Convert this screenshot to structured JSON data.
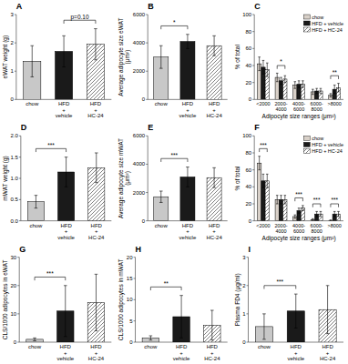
{
  "chart_data": [
    {
      "type": "bar",
      "title": "A",
      "ylabel": "eWAT weight (g)",
      "categories": [
        "chow",
        "HFD\n+\nvehicle",
        "HFD\n+\nHC-24"
      ],
      "values": [
        1.35,
        1.7,
        1.95
      ],
      "errors": [
        0.55,
        0.55,
        0.55
      ],
      "colors": [
        "#c8c8c8",
        "#1a1a1a",
        "white"
      ],
      "ylim": [
        0,
        3
      ],
      "yticks": [
        0,
        1,
        2,
        3
      ],
      "annotations": [
        {
          "text": "p=0.10",
          "between": [
            "HFD\n+\nvehicle",
            "HFD\n+\nHC-24"
          ]
        }
      ]
    },
    {
      "type": "bar",
      "title": "B",
      "ylabel": "Average adipocyte size eWAT (μm²)",
      "categories": [
        "chow",
        "HFD\n+\nvehicle",
        "HFD\n+\nHC-24"
      ],
      "values": [
        3000,
        4100,
        3800
      ],
      "errors": [
        800,
        500,
        700
      ],
      "colors": [
        "#c8c8c8",
        "#1a1a1a",
        "white"
      ],
      "ylim": [
        0,
        6000
      ],
      "yticks": [
        0,
        2000,
        4000,
        6000
      ],
      "annotations": [
        {
          "text": "*",
          "between": [
            "chow",
            "HFD\n+\nvehicle"
          ]
        }
      ]
    },
    {
      "type": "bar",
      "title": "C",
      "ylabel": "% of total",
      "xlabel": "Adipocyte size ranges (μm²)",
      "categories": [
        "<2000",
        "2000-\n4000",
        "4000-\n6000",
        "6000-\n8000",
        ">8000"
      ],
      "series": [
        {
          "name": "chow",
          "color": "#d8d0c8",
          "values": [
            42,
            26,
            17,
            9,
            5
          ],
          "errors": [
            8,
            5,
            4,
            3,
            2
          ]
        },
        {
          "name": "HFD + vehicle",
          "color": "#1a1a1a",
          "values": [
            38,
            22,
            18,
            10,
            12
          ],
          "errors": [
            8,
            4,
            4,
            3,
            5
          ]
        },
        {
          "name": "HFD + HC-24",
          "color": "white",
          "values": [
            35,
            24,
            18,
            10,
            14
          ],
          "errors": [
            8,
            4,
            4,
            3,
            5
          ]
        }
      ],
      "ylim": [
        0,
        100
      ],
      "yticks": [
        0,
        20,
        40,
        60,
        80,
        100
      ],
      "legend": "upper-right",
      "annotations": [
        {
          "text": "*",
          "category": "2000-\n4000"
        },
        {
          "text": "**",
          "category": ">8000"
        }
      ]
    },
    {
      "type": "bar",
      "title": "D",
      "ylabel": "mWAT weight (g)",
      "categories": [
        "chow",
        "HFD\n+\nvehicle",
        "HFD\n+\nHC-24"
      ],
      "values": [
        0.45,
        1.15,
        1.25
      ],
      "errors": [
        0.15,
        0.35,
        0.35
      ],
      "colors": [
        "#c8c8c8",
        "#1a1a1a",
        "white"
      ],
      "ylim": [
        0,
        2.0
      ],
      "yticks": [
        {
          "value": 0,
          "label": "0.0"
        },
        0.5,
        {
          "value": 1,
          "label": "1.0"
        },
        1.5,
        {
          "value": 2,
          "label": "2.0"
        }
      ],
      "annotations": [
        {
          "text": "***",
          "between": [
            "chow",
            "HFD\n+\nvehicle"
          ]
        }
      ]
    },
    {
      "type": "bar",
      "title": "E",
      "ylabel": "Average adipocyte size mWAT (μm²)",
      "categories": [
        "chow",
        "HFD\n+\nvehicle",
        "HFD\n+\nHC-24"
      ],
      "values": [
        1700,
        3100,
        3050
      ],
      "errors": [
        400,
        700,
        700
      ],
      "colors": [
        "#c8c8c8",
        "#1a1a1a",
        "white"
      ],
      "ylim": [
        0,
        6000
      ],
      "yticks": [
        0,
        2000,
        4000,
        6000
      ],
      "annotations": [
        {
          "text": "***",
          "between": [
            "chow",
            "HFD\n+\nvehicle"
          ]
        }
      ]
    },
    {
      "type": "bar",
      "title": "F",
      "ylabel": "% of total",
      "xlabel": "Adipocyte size ranges (μm²)",
      "categories": [
        "<2000",
        "2000-\n4000",
        "4000-\n6000",
        "6000-\n8000",
        ">8000"
      ],
      "series": [
        {
          "name": "chow",
          "color": "#d8d0c8",
          "values": [
            68,
            25,
            5,
            1.5,
            0.5
          ],
          "errors": [
            8,
            5,
            2,
            1,
            0.5
          ]
        },
        {
          "name": "HFD + vehicle",
          "color": "#1a1a1a",
          "values": [
            47,
            25,
            12,
            8,
            8
          ],
          "errors": [
            8,
            5,
            3,
            3,
            3
          ]
        },
        {
          "name": "HFD + HC-24",
          "color": "white",
          "values": [
            47,
            25,
            15,
            8,
            8
          ],
          "errors": [
            8,
            5,
            3,
            3,
            3
          ]
        }
      ],
      "ylim": [
        0,
        100
      ],
      "yticks": [
        0,
        20,
        40,
        60,
        80,
        100
      ],
      "legend": "upper-right",
      "annotations": [
        {
          "text": "***",
          "category": "<2000"
        },
        {
          "text": "***",
          "category": "4000-\n6000"
        },
        {
          "text": "***",
          "category": "6000-\n8000"
        },
        {
          "text": "***",
          "category": ">8000"
        }
      ]
    },
    {
      "type": "bar",
      "title": "G",
      "ylabel": "CLS/1000 adipocytes in eWAT",
      "categories": [
        "chow",
        "HFD\n+\nvehicle",
        "HFD\n+\nHC-24"
      ],
      "values": [
        1.0,
        11.0,
        14.0
      ],
      "errors": [
        0.5,
        9.0,
        10.0
      ],
      "colors": [
        "#c8c8c8",
        "#1a1a1a",
        "white"
      ],
      "ylim": [
        0,
        30
      ],
      "yticks": [
        0,
        10,
        20,
        30
      ],
      "annotations": [
        {
          "text": "***",
          "between": [
            "chow",
            "HFD\n+\nvehicle"
          ]
        }
      ]
    },
    {
      "type": "bar",
      "title": "H",
      "ylabel": "CLS/1000 adipocytes in mWAT",
      "categories": [
        "chow",
        "HFD\n+\nvehicle",
        "HFD\n+\nHC-24"
      ],
      "values": [
        1.0,
        6.0,
        4.0
      ],
      "errors": [
        0.5,
        5.0,
        3.5
      ],
      "colors": [
        "#c8c8c8",
        "#1a1a1a",
        "white"
      ],
      "ylim": [
        0,
        20
      ],
      "yticks": [
        0,
        5,
        10,
        15,
        20
      ],
      "annotations": [
        {
          "text": "**",
          "between": [
            "chow",
            "HFD\n+\nvehicle"
          ]
        }
      ]
    },
    {
      "type": "bar",
      "title": "I",
      "ylabel": "Plasma FD4 (μg/ml)",
      "categories": [
        "chow",
        "HFD\n+\nvehicle",
        "HFD\n+\nHC-24"
      ],
      "values": [
        0.55,
        1.1,
        1.15
      ],
      "errors": [
        0.45,
        0.6,
        0.85
      ],
      "colors": [
        "#c8c8c8",
        "#1a1a1a",
        "white"
      ],
      "ylim": [
        0,
        3
      ],
      "yticks": [
        0,
        1,
        2,
        3
      ],
      "annotations": [
        {
          "text": "***",
          "between": [
            "chow",
            "HFD\n+\nvehicle"
          ]
        }
      ]
    }
  ]
}
